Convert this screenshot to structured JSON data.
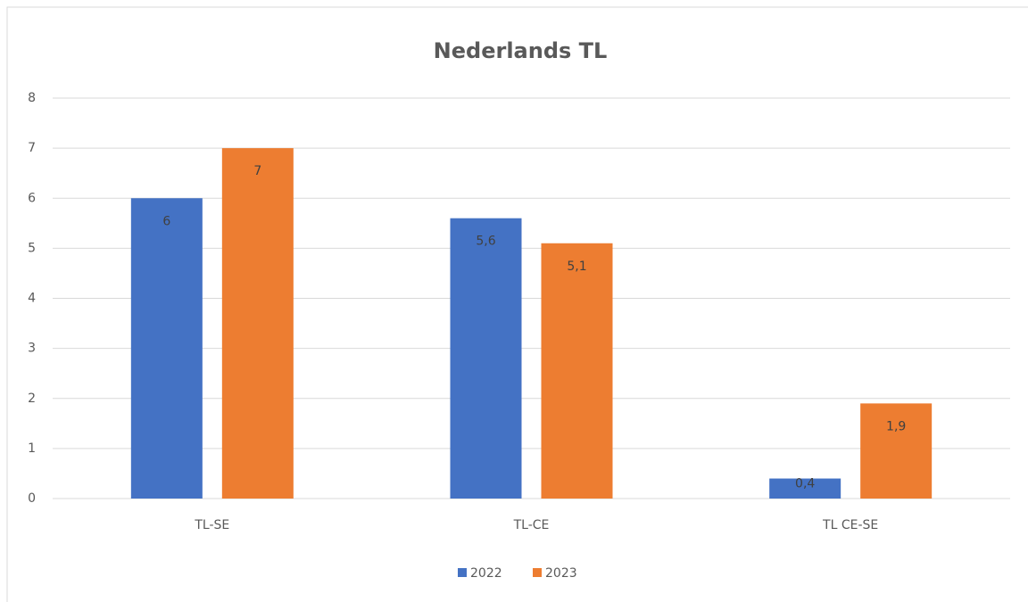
{
  "chart_data": {
    "type": "bar",
    "title": "Nederlands TL",
    "categories": [
      "TL-SE",
      "TL-CE",
      "TL CE-SE"
    ],
    "series": [
      {
        "name": "2022",
        "color": "#4472c4",
        "values": [
          6,
          5.6,
          0.4
        ],
        "value_labels": [
          "6",
          "5,6",
          "0,4"
        ]
      },
      {
        "name": "2023",
        "color": "#ed7d31",
        "values": [
          7,
          5.1,
          1.9
        ],
        "value_labels": [
          "7",
          "5,1",
          "1,9"
        ]
      }
    ],
    "ylim": [
      0,
      8
    ],
    "yticks": [
      0,
      1,
      2,
      3,
      4,
      5,
      6,
      7,
      8
    ],
    "grid": true,
    "legend": "bottom"
  }
}
